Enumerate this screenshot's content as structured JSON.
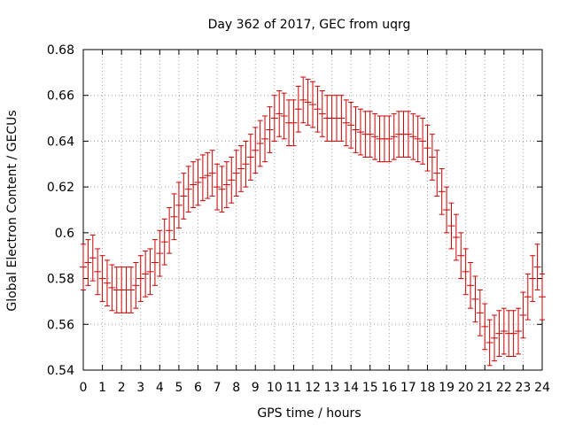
{
  "chart_data": {
    "type": "line",
    "title": "Day 362 of 2017, GEC from uqrg",
    "xlabel": "GPS time / hours",
    "ylabel": "Global Electron Content / GECUs",
    "xlim": [
      0,
      24
    ],
    "ylim": [
      0.54,
      0.68
    ],
    "xticks": [
      "0",
      "1",
      "2",
      "3",
      "4",
      "5",
      "6",
      "7",
      "8",
      "9",
      "10",
      "11",
      "12",
      "13",
      "14",
      "15",
      "16",
      "17",
      "18",
      "19",
      "20",
      "21",
      "22",
      "23",
      "24"
    ],
    "yticks": [
      "0.54",
      "0.56",
      "0.58",
      "0.6",
      "0.62",
      "0.64",
      "0.66",
      "0.68"
    ],
    "grid": true,
    "series_color": "#cc0000",
    "error": 0.01,
    "x": [
      0,
      0.25,
      0.5,
      0.75,
      1,
      1.25,
      1.5,
      1.75,
      2,
      2.25,
      2.5,
      2.75,
      3,
      3.25,
      3.5,
      3.75,
      4,
      4.25,
      4.5,
      4.75,
      5,
      5.25,
      5.5,
      5.75,
      6,
      6.25,
      6.5,
      6.75,
      7,
      7.25,
      7.5,
      7.75,
      8,
      8.25,
      8.5,
      8.75,
      9,
      9.25,
      9.5,
      9.75,
      10,
      10.25,
      10.5,
      10.75,
      11,
      11.25,
      11.5,
      11.75,
      12,
      12.25,
      12.5,
      12.75,
      13,
      13.25,
      13.5,
      13.75,
      14,
      14.25,
      14.5,
      14.75,
      15,
      15.25,
      15.5,
      15.75,
      16,
      16.25,
      16.5,
      16.75,
      17,
      17.25,
      17.5,
      17.75,
      18,
      18.25,
      18.5,
      18.75,
      19,
      19.25,
      19.5,
      19.75,
      20,
      20.25,
      20.5,
      20.75,
      21,
      21.25,
      21.5,
      21.75,
      22,
      22.25,
      22.5,
      22.75,
      23,
      23.25,
      23.5,
      23.75,
      24
    ],
    "values": [
      0.585,
      0.587,
      0.589,
      0.583,
      0.58,
      0.578,
      0.576,
      0.575,
      0.575,
      0.575,
      0.575,
      0.577,
      0.58,
      0.582,
      0.583,
      0.587,
      0.591,
      0.596,
      0.601,
      0.607,
      0.612,
      0.616,
      0.619,
      0.621,
      0.622,
      0.624,
      0.625,
      0.626,
      0.62,
      0.619,
      0.621,
      0.623,
      0.626,
      0.628,
      0.63,
      0.633,
      0.636,
      0.639,
      0.641,
      0.645,
      0.65,
      0.652,
      0.651,
      0.648,
      0.648,
      0.654,
      0.658,
      0.657,
      0.656,
      0.654,
      0.652,
      0.65,
      0.65,
      0.65,
      0.65,
      0.648,
      0.647,
      0.645,
      0.644,
      0.643,
      0.643,
      0.642,
      0.641,
      0.641,
      0.641,
      0.642,
      0.643,
      0.643,
      0.643,
      0.642,
      0.641,
      0.64,
      0.637,
      0.633,
      0.626,
      0.618,
      0.61,
      0.603,
      0.598,
      0.59,
      0.583,
      0.577,
      0.571,
      0.565,
      0.559,
      0.552,
      0.554,
      0.556,
      0.557,
      0.556,
      0.556,
      0.557,
      0.564,
      0.572,
      0.58,
      0.585,
      0.572
    ]
  }
}
